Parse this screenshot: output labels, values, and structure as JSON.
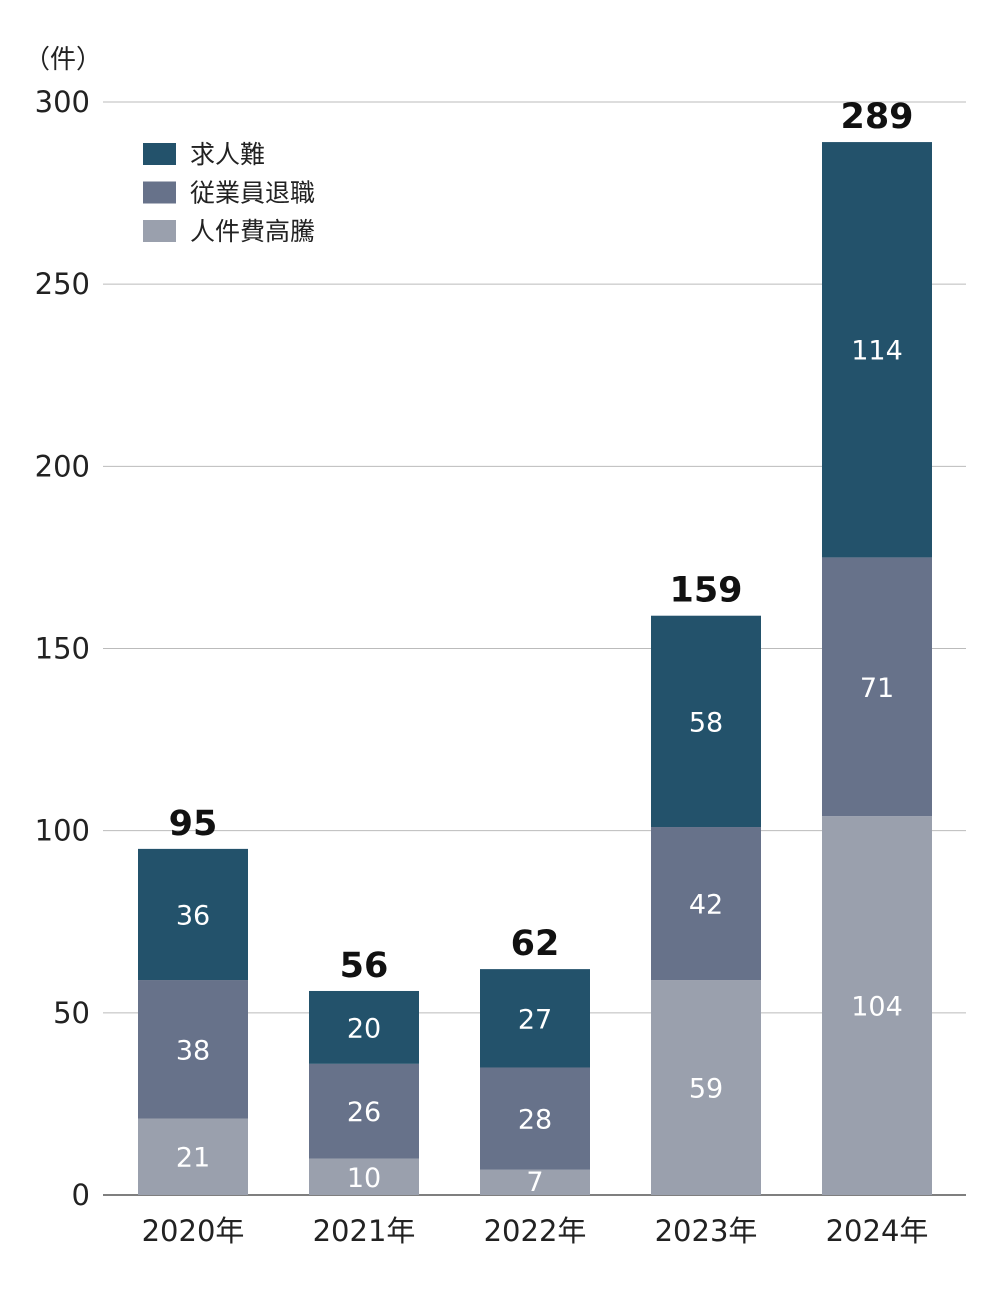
{
  "chart_data": {
    "type": "bar",
    "stacked": true,
    "unit_label": "（件）",
    "categories": [
      "2020年",
      "2021年",
      "2022年",
      "2023年",
      "2024年"
    ],
    "series": [
      {
        "name": "人件費高騰",
        "color": "#9aa0ad",
        "values": [
          21,
          10,
          7,
          59,
          104
        ]
      },
      {
        "name": "従業員退職",
        "color": "#67728a",
        "values": [
          38,
          26,
          28,
          42,
          71
        ]
      },
      {
        "name": "求人難",
        "color": "#23526b",
        "values": [
          36,
          20,
          27,
          58,
          114
        ]
      }
    ],
    "totals": [
      95,
      56,
      62,
      159,
      289
    ],
    "legend_order": [
      "求人難",
      "従業員退職",
      "人件費高騰"
    ],
    "legend_position": "top-left",
    "ylim": [
      0,
      300
    ],
    "yticks": [
      0,
      50,
      100,
      150,
      200,
      250,
      300
    ],
    "grid": true
  }
}
